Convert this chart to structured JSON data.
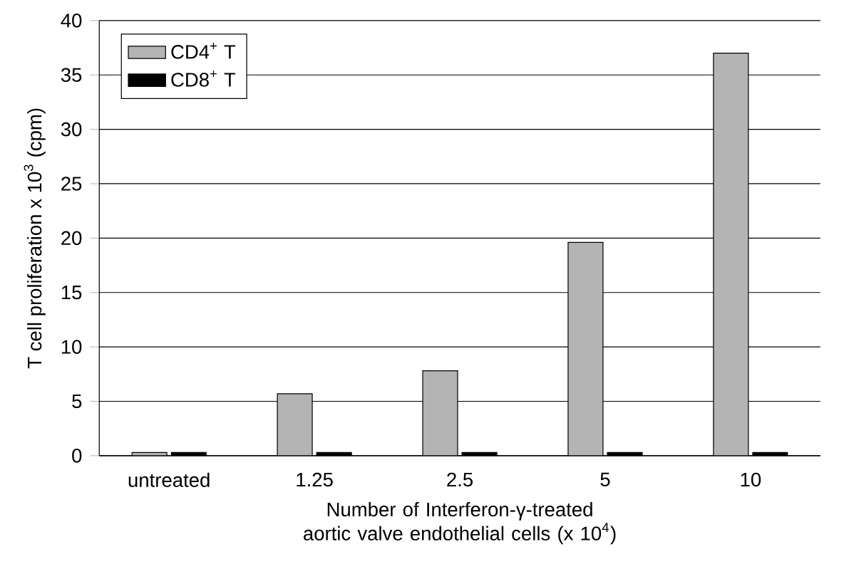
{
  "chart_data": {
    "type": "bar",
    "xlabel": "Number of Interferon-γ-treated aortic valve endothelial cells (x 10$^{4}$)",
    "ylabel": "T cell proliferation x 10$^{3}$ (cpm)",
    "categories": [
      "untreated",
      "1.25",
      "2.5",
      "5",
      "10"
    ],
    "series": [
      {
        "name": "CD4$^{+}$ T",
        "color": "#b4b4b4",
        "values": [
          0.3,
          5.7,
          7.8,
          19.6,
          37
        ]
      },
      {
        "name": "CD8$^{+}$ T",
        "color": "#000000",
        "values": [
          0.3,
          0.3,
          0.3,
          0.3,
          0.3
        ]
      }
    ],
    "ylim": [
      0,
      40
    ],
    "yticks": [
      0,
      5,
      10,
      15,
      20,
      25,
      30,
      35,
      40
    ],
    "grid": "y",
    "legend": "top left"
  }
}
